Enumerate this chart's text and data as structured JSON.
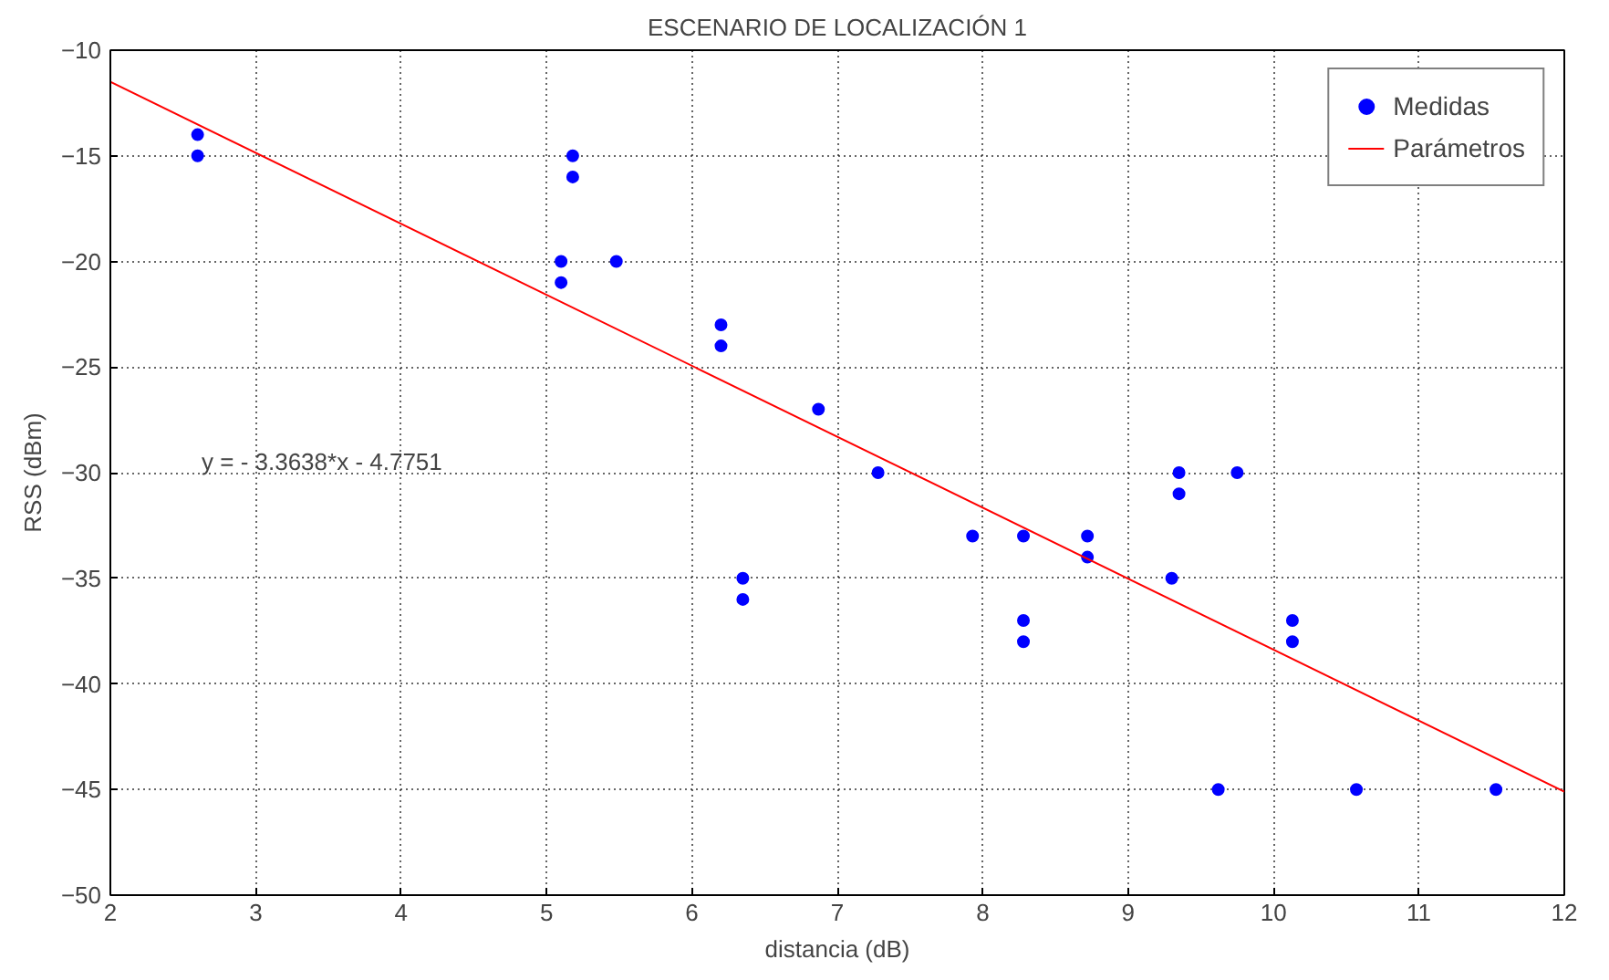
{
  "chart_data": {
    "type": "scatter",
    "title": "ESCENARIO DE LOCALIZACIÓN 1",
    "xlabel": "distancia (dB)",
    "ylabel": "RSS (dBm)",
    "xlim": [
      2,
      12
    ],
    "xticks": [
      2,
      3,
      4,
      5,
      6,
      7,
      8,
      9,
      10,
      11,
      12
    ],
    "ylim": [
      -50,
      -10
    ],
    "yticks": [
      -50,
      -45,
      -40,
      -35,
      -30,
      -25,
      -20,
      -15,
      -10
    ],
    "grid": true,
    "legend": "top right",
    "annotations": [
      "y = - 3.3638*x - 4.7751"
    ],
    "series": [
      {
        "name": "Medidas",
        "color": "#0000ff",
        "marker": "circle",
        "x": [
          2.6,
          2.6,
          5.1,
          5.1,
          5.18,
          5.18,
          5.48,
          6.2,
          6.2,
          6.35,
          6.35,
          6.87,
          7.28,
          7.93,
          8.28,
          8.28,
          8.28,
          8.72,
          8.72,
          9.3,
          9.35,
          9.35,
          9.62,
          9.75,
          10.13,
          10.13,
          10.57,
          11.53
        ],
        "values": [
          -14,
          -15,
          -20,
          -21,
          -15,
          -16,
          -20,
          -23,
          -24,
          -35,
          -36,
          -27,
          -30,
          -33,
          -33,
          -37,
          -38,
          -33,
          -34,
          -35,
          -30,
          -31,
          -45,
          -30,
          -37,
          -38,
          -45,
          -45
        ]
      },
      {
        "name": "Parámetros",
        "type": "line",
        "color": "#ff0000",
        "line_style": "solid",
        "x": [
          2,
          12
        ],
        "values": [
          -11.5,
          -45.1
        ]
      }
    ]
  }
}
